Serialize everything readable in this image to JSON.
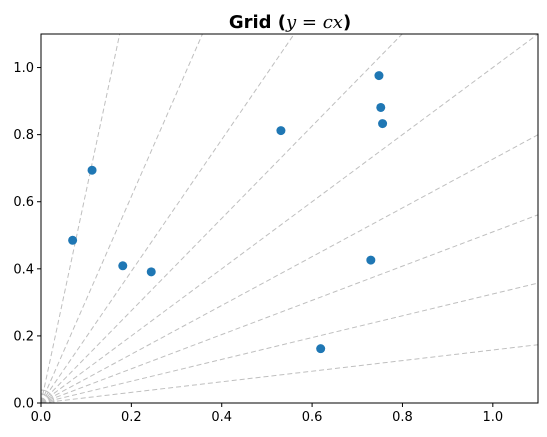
{
  "chart_data": {
    "type": "scatter",
    "title": {
      "prefix": "Grid (",
      "math": "y = cx",
      "suffix": ")"
    },
    "xlim": [
      0,
      1.1
    ],
    "ylim": [
      0,
      1.1
    ],
    "xticks": [
      0.0,
      0.2,
      0.4,
      0.6,
      0.8,
      1.0
    ],
    "yticks": [
      0.0,
      0.2,
      0.4,
      0.6,
      0.8,
      1.0
    ],
    "xtick_labels": [
      "0.0",
      "0.2",
      "0.4",
      "0.6",
      "0.8",
      "1.0"
    ],
    "ytick_labels": [
      "0.0",
      "0.2",
      "0.4",
      "0.6",
      "0.8",
      "1.0"
    ],
    "grid": true,
    "grid_lines_slopes": [
      0.158,
      0.325,
      0.51,
      0.727,
      1.0,
      1.376,
      1.963,
      3.078,
      6.314
    ],
    "x": [
      0.07,
      0.113,
      0.181,
      0.244,
      0.531,
      0.619,
      0.73,
      0.748,
      0.752,
      0.756
    ],
    "y": [
      0.485,
      0.694,
      0.409,
      0.391,
      0.812,
      0.162,
      0.426,
      0.976,
      0.881,
      0.833
    ],
    "colors": {
      "points": "#1f77b4",
      "grid": "#bfbfbf",
      "axes": "#000000"
    }
  }
}
